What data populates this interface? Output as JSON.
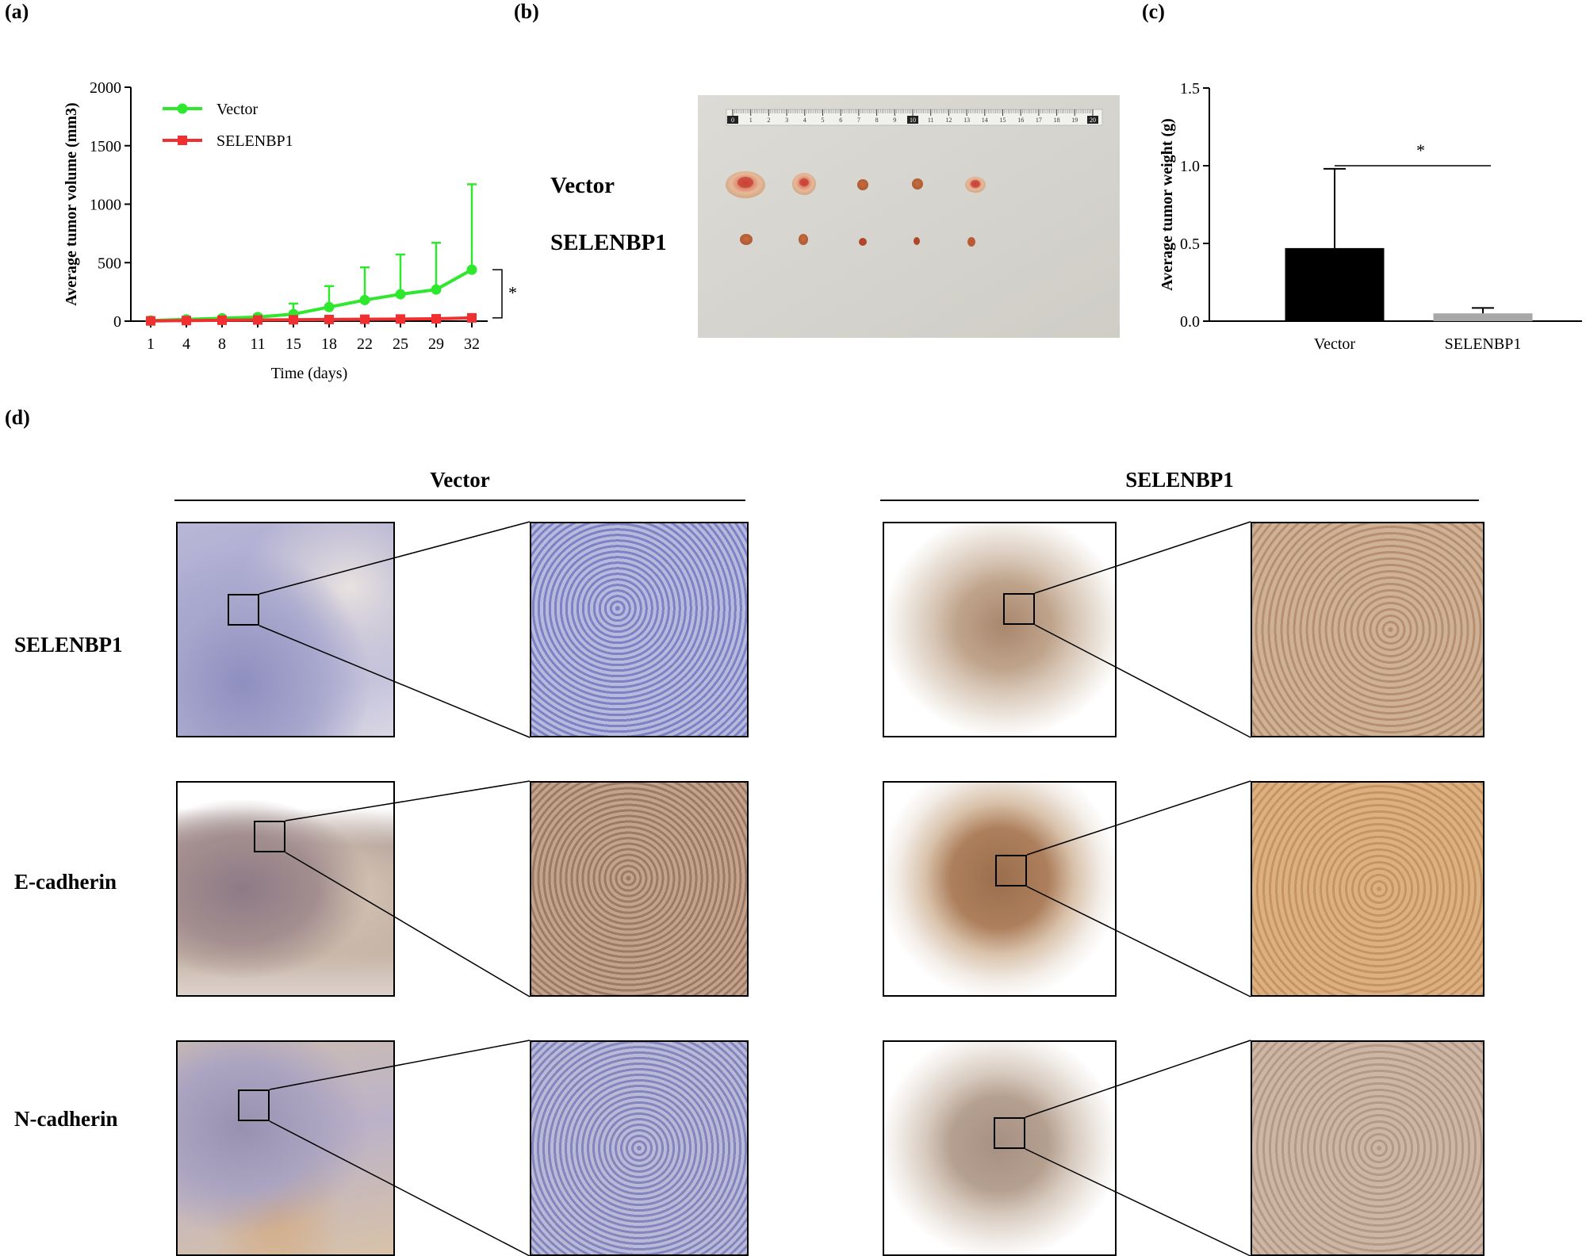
{
  "panels": {
    "a": "(a)",
    "b": "(b)",
    "c": "(c)",
    "d": "(d)"
  },
  "chart_data": [
    {
      "type": "line",
      "panel": "a",
      "xlabel": "Time (days)",
      "ylabel": "Average tumor volume (mm3)",
      "x": [
        1,
        4,
        8,
        11,
        15,
        18,
        22,
        25,
        29,
        32
      ],
      "ylim": [
        0,
        2000
      ],
      "yticks": [
        0,
        500,
        1000,
        1500,
        2000
      ],
      "legend_position": "top-left",
      "significance": "*",
      "series": [
        {
          "name": "Vector",
          "color": "#2ee82e",
          "marker": "circle",
          "values": [
            5,
            15,
            25,
            35,
            60,
            120,
            180,
            230,
            270,
            440
          ],
          "error": [
            5,
            10,
            15,
            20,
            90,
            180,
            280,
            340,
            400,
            730
          ]
        },
        {
          "name": "SELENBP1",
          "color": "#f03030",
          "marker": "square",
          "values": [
            2,
            5,
            8,
            10,
            12,
            14,
            16,
            18,
            20,
            28
          ],
          "error": [
            2,
            3,
            4,
            5,
            5,
            6,
            6,
            7,
            8,
            10
          ]
        }
      ]
    },
    {
      "type": "bar",
      "panel": "c",
      "categories": [
        "Vector",
        "SELENBP1"
      ],
      "values": [
        0.47,
        0.05
      ],
      "error": [
        0.51,
        0.035
      ],
      "colors": [
        "#000000",
        "#a8a8a8"
      ],
      "ylabel": "Average tumor weight (g)",
      "ylim": [
        0,
        1.5
      ],
      "yticks": [
        "0.0",
        "0.5",
        "1.0",
        "1.5"
      ],
      "significance": "*"
    }
  ],
  "photo": {
    "labels": [
      "Vector",
      "SELENBP1"
    ],
    "ruler_marks": [
      "0",
      "1",
      "2",
      "3",
      "4",
      "5",
      "6",
      "7",
      "8",
      "9",
      "10",
      "11",
      "12",
      "13",
      "14",
      "15",
      "16",
      "17",
      "18",
      "19",
      "20"
    ]
  },
  "ihc": {
    "groups": [
      "Vector",
      "SELENBP1"
    ],
    "rows": [
      "SELENBP1",
      "E-cadherin",
      "N-cadherin"
    ]
  }
}
